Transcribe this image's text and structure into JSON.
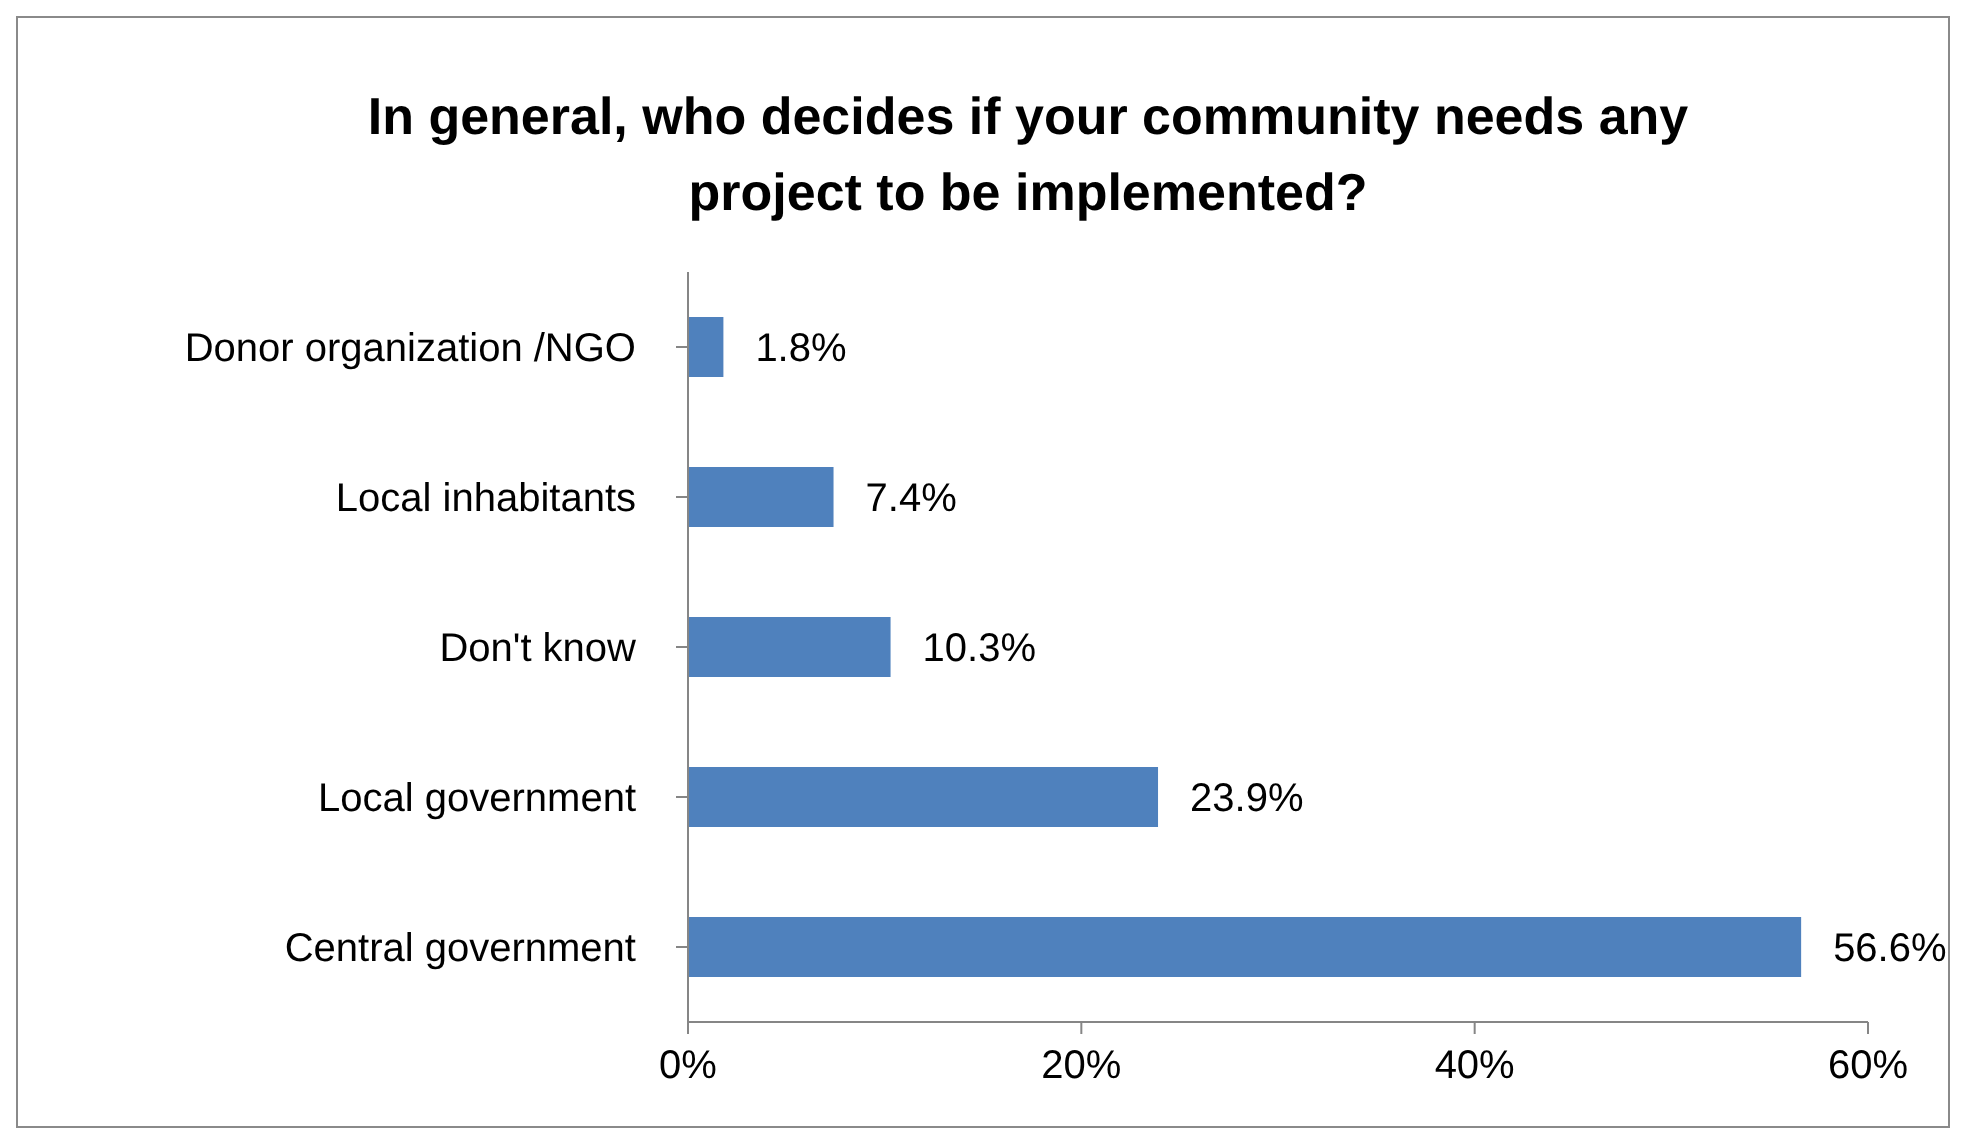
{
  "chart_data": {
    "type": "bar",
    "orientation": "horizontal",
    "title": "In general, who decides if your community needs any project to be implemented?",
    "categories": [
      "Donor organization /NGO",
      "Local inhabitants",
      "Don't know",
      "Local government",
      "Central government"
    ],
    "values": [
      1.8,
      7.4,
      10.3,
      23.9,
      56.6
    ],
    "value_labels": [
      "1.8%",
      "7.4%",
      "10.3%",
      "23.9%",
      "56.6%"
    ],
    "color": "#4f81bd",
    "xlim": [
      0,
      60
    ],
    "xticks": [
      {
        "value": 0,
        "label": "0%"
      },
      {
        "value": 20,
        "label": "20%"
      },
      {
        "value": 40,
        "label": "40%"
      },
      {
        "value": 60,
        "label": "60%"
      }
    ],
    "grid": false
  }
}
